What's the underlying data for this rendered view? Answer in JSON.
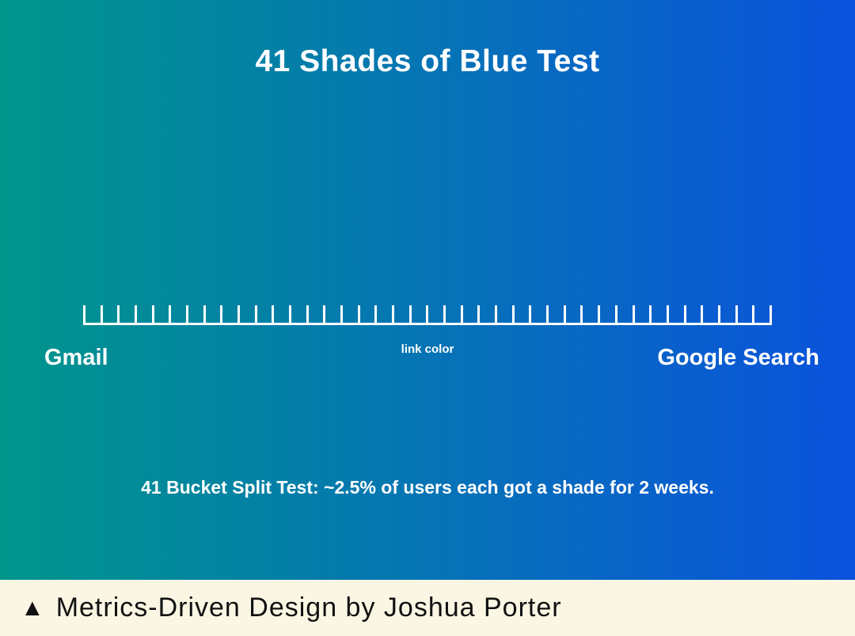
{
  "slide": {
    "title": "41 Shades of Blue Test",
    "ruler": {
      "tick_count": 41,
      "left_label": "Gmail",
      "center_label": "link color",
      "right_label": "Google Search"
    },
    "caption": "41 Bucket Split Test: ~2.5% of users each got a shade for 2 weeks."
  },
  "footer": {
    "marker": "▲",
    "text": "Metrics-Driven Design by Joshua Porter"
  },
  "colors": {
    "gradient_start": "#00968c",
    "gradient_end": "#0b52dd",
    "slide_text": "#ffffff",
    "footer_bg": "#fbf6e4",
    "footer_text": "#111111"
  }
}
